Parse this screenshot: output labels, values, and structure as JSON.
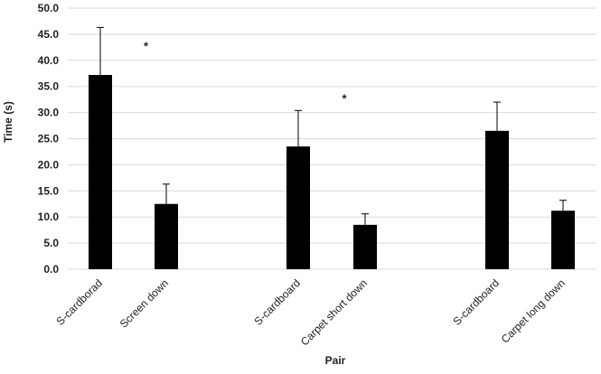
{
  "chart_data": {
    "type": "bar",
    "xlabel": "Pair",
    "ylabel": "Time (s)",
    "ylim": [
      0,
      50
    ],
    "ytick_step": 5,
    "ytick_labels": [
      "0.0",
      "5.0",
      "10.0",
      "15.0",
      "20.0",
      "25.0",
      "30.0",
      "35.0",
      "40.0",
      "45.0",
      "50.0"
    ],
    "grid": true,
    "legend": "none",
    "bar_color": "#000000",
    "grid_color": "#d9d9d9",
    "categories": [
      "S-cardborad",
      "Screen down",
      "S-cardboard",
      "Carpet short down",
      "S-cardboard",
      "Carpet long down"
    ],
    "values": [
      37.2,
      12.5,
      23.5,
      8.5,
      26.5,
      11.2
    ],
    "error_upper": [
      46.3,
      16.3,
      30.4,
      10.6,
      32.0,
      13.2
    ],
    "annotations": [
      {
        "text": "*",
        "x_between": [
          0,
          1
        ],
        "y": 43.5
      },
      {
        "text": "*",
        "x_between": [
          2,
          3
        ],
        "y": 33.5
      }
    ]
  }
}
